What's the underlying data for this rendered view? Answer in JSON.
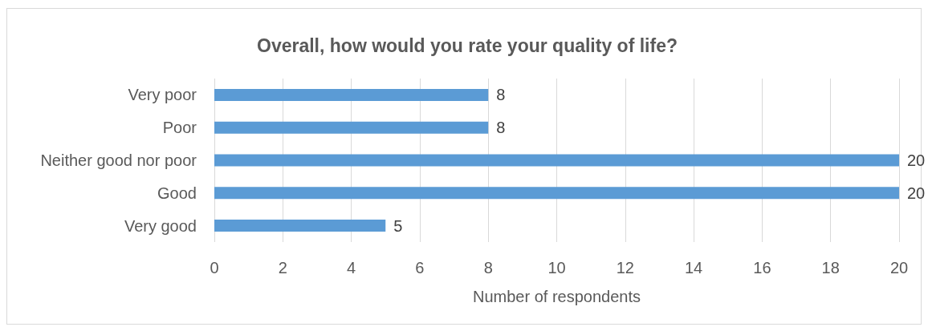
{
  "chart_data": {
    "type": "bar",
    "orientation": "horizontal",
    "title": "Overall, how would you rate your quality of life?",
    "xlabel": "Number of respondents",
    "categories": [
      "Very poor",
      "Poor",
      "Neither good nor poor",
      "Good",
      "Very good"
    ],
    "values": [
      8,
      8,
      20,
      20,
      5
    ],
    "color": "#5b9bd5",
    "xlim": [
      0,
      20
    ],
    "xticks": [
      0,
      2,
      4,
      6,
      8,
      10,
      12,
      14,
      16,
      18,
      20
    ],
    "grid": "x",
    "data_labels": true
  }
}
